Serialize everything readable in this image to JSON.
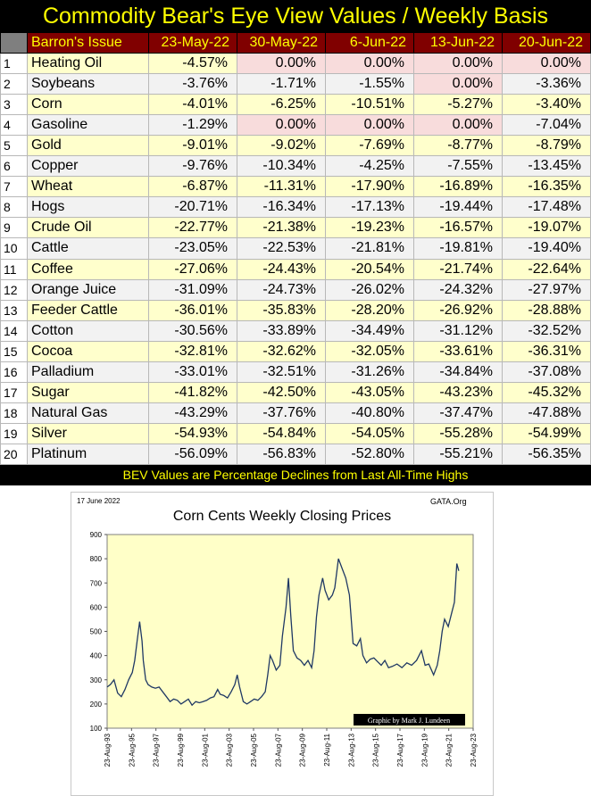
{
  "title": "Commodity Bear's Eye View Values / Weekly Basis",
  "table": {
    "headers": [
      "Barron's Issue",
      "23-May-22",
      "30-May-22",
      "6-Jun-22",
      "13-Jun-22",
      "20-Jun-22"
    ],
    "rows": [
      {
        "n": "1",
        "name": "Heating Oil",
        "v": [
          "-4.57%",
          "0.00%",
          "0.00%",
          "0.00%",
          "0.00%"
        ]
      },
      {
        "n": "2",
        "name": "Soybeans",
        "v": [
          "-3.76%",
          "-1.71%",
          "-1.55%",
          "0.00%",
          "-3.36%"
        ]
      },
      {
        "n": "3",
        "name": "Corn",
        "v": [
          "-4.01%",
          "-6.25%",
          "-10.51%",
          "-5.27%",
          "-3.40%"
        ]
      },
      {
        "n": "4",
        "name": "Gasoline",
        "v": [
          "-1.29%",
          "0.00%",
          "0.00%",
          "0.00%",
          "-7.04%"
        ]
      },
      {
        "n": "5",
        "name": "Gold",
        "v": [
          "-9.01%",
          "-9.02%",
          "-7.69%",
          "-8.77%",
          "-8.79%"
        ]
      },
      {
        "n": "6",
        "name": "Copper",
        "v": [
          "-9.76%",
          "-10.34%",
          "-4.25%",
          "-7.55%",
          "-13.45%"
        ]
      },
      {
        "n": "7",
        "name": "Wheat",
        "v": [
          "-6.87%",
          "-11.31%",
          "-17.90%",
          "-16.89%",
          "-16.35%"
        ]
      },
      {
        "n": "8",
        "name": "Hogs",
        "v": [
          "-20.71%",
          "-16.34%",
          "-17.13%",
          "-19.44%",
          "-17.48%"
        ]
      },
      {
        "n": "9",
        "name": "Crude Oil",
        "v": [
          "-22.77%",
          "-21.38%",
          "-19.23%",
          "-16.57%",
          "-19.07%"
        ]
      },
      {
        "n": "10",
        "name": "Cattle",
        "v": [
          "-23.05%",
          "-22.53%",
          "-21.81%",
          "-19.81%",
          "-19.40%"
        ]
      },
      {
        "n": "11",
        "name": "Coffee",
        "v": [
          "-27.06%",
          "-24.43%",
          "-20.54%",
          "-21.74%",
          "-22.64%"
        ]
      },
      {
        "n": "12",
        "name": "Orange Juice",
        "v": [
          "-31.09%",
          "-24.73%",
          "-26.02%",
          "-24.32%",
          "-27.97%"
        ]
      },
      {
        "n": "13",
        "name": "Feeder Cattle",
        "v": [
          "-36.01%",
          "-35.83%",
          "-28.20%",
          "-26.92%",
          "-28.88%"
        ]
      },
      {
        "n": "14",
        "name": "Cotton",
        "v": [
          "-30.56%",
          "-33.89%",
          "-34.49%",
          "-31.12%",
          "-32.52%"
        ]
      },
      {
        "n": "15",
        "name": "Cocoa",
        "v": [
          "-32.81%",
          "-32.62%",
          "-32.05%",
          "-33.61%",
          "-36.31%"
        ]
      },
      {
        "n": "16",
        "name": "Palladium",
        "v": [
          "-33.01%",
          "-32.51%",
          "-31.26%",
          "-34.84%",
          "-37.08%"
        ]
      },
      {
        "n": "17",
        "name": "Sugar",
        "v": [
          "-41.82%",
          "-42.50%",
          "-43.05%",
          "-43.23%",
          "-45.32%"
        ]
      },
      {
        "n": "18",
        "name": "Natural Gas",
        "v": [
          "-43.29%",
          "-37.76%",
          "-40.80%",
          "-37.47%",
          "-47.88%"
        ]
      },
      {
        "n": "19",
        "name": "Silver",
        "v": [
          "-54.93%",
          "-54.84%",
          "-54.05%",
          "-55.28%",
          "-54.99%"
        ]
      },
      {
        "n": "20",
        "name": "Platinum",
        "v": [
          "-56.09%",
          "-56.83%",
          "-52.80%",
          "-55.21%",
          "-56.35%"
        ]
      }
    ]
  },
  "note": "BEV Values are Percentage Declines from Last All-Time Highs",
  "colors": {
    "title": "#FFFF00",
    "header_bg": "#800000",
    "row_odd": "#FFFFCC",
    "row_even": "#F2F2F2",
    "zero_highlight": "#F8DCDC",
    "plot_bg": "#FFFFC8",
    "series": "#1F3864"
  },
  "chart_data": {
    "type": "line",
    "title": "Corn Cents Weekly Closing Prices",
    "date_label": "17 June 2022",
    "source": "GATA.Org",
    "credit": "Graphic by Mark J. Lundeen",
    "ylim": [
      100,
      900
    ],
    "yticks": [
      "100",
      "200",
      "300",
      "400",
      "500",
      "600",
      "700",
      "800",
      "900"
    ],
    "xticks": [
      "23-Aug-93",
      "23-Aug-95",
      "23-Aug-97",
      "23-Aug-99",
      "23-Aug-01",
      "23-Aug-03",
      "23-Aug-05",
      "23-Aug-07",
      "23-Aug-09",
      "23-Aug-11",
      "23-Aug-13",
      "23-Aug-15",
      "23-Aug-17",
      "23-Aug-19",
      "23-Aug-21",
      "23-Aug-23"
    ],
    "xlim": [
      1993.64,
      2023.64
    ],
    "grid": false,
    "series": [
      {
        "x": [
          1993.64,
          1993.9,
          1994.2,
          1994.5,
          1994.8,
          1995.1,
          1995.4,
          1995.7,
          1995.9,
          1996.1,
          1996.3,
          1996.5,
          1996.6,
          1996.8,
          1997.0,
          1997.3,
          1997.6,
          1997.9,
          1998.2,
          1998.5,
          1998.8,
          1999.1,
          1999.4,
          1999.7,
          2000.0,
          2000.3,
          2000.6,
          2000.9,
          2001.2,
          2001.5,
          2001.8,
          2002.1,
          2002.4,
          2002.7,
          2002.9,
          2003.2,
          2003.5,
          2003.8,
          2004.1,
          2004.3,
          2004.5,
          2004.8,
          2005.1,
          2005.4,
          2005.7,
          2006.0,
          2006.3,
          2006.6,
          2006.8,
          2007.0,
          2007.2,
          2007.5,
          2007.8,
          2008.0,
          2008.3,
          2008.5,
          2008.7,
          2008.9,
          2009.2,
          2009.5,
          2009.8,
          2010.1,
          2010.4,
          2010.6,
          2010.8,
          2011.0,
          2011.3,
          2011.5,
          2011.8,
          2012.1,
          2012.3,
          2012.6,
          2012.9,
          2013.2,
          2013.5,
          2013.8,
          2014.1,
          2014.4,
          2014.6,
          2014.9,
          2015.2,
          2015.5,
          2015.8,
          2016.1,
          2016.4,
          2016.7,
          2017.0,
          2017.4,
          2017.8,
          2018.2,
          2018.6,
          2019.0,
          2019.4,
          2019.7,
          2020.0,
          2020.4,
          2020.7,
          2020.9,
          2021.1,
          2021.3,
          2021.6,
          2021.9,
          2022.1,
          2022.3,
          2022.46
        ],
        "y": [
          270,
          280,
          300,
          245,
          230,
          260,
          300,
          330,
          380,
          460,
          540,
          460,
          380,
          300,
          280,
          270,
          265,
          270,
          250,
          230,
          210,
          220,
          215,
          200,
          210,
          220,
          195,
          210,
          205,
          210,
          215,
          225,
          230,
          260,
          240,
          235,
          225,
          250,
          280,
          320,
          270,
          210,
          200,
          210,
          220,
          215,
          230,
          250,
          320,
          400,
          380,
          340,
          360,
          480,
          600,
          720,
          560,
          420,
          390,
          380,
          360,
          380,
          350,
          420,
          560,
          650,
          720,
          670,
          630,
          650,
          680,
          800,
          760,
          720,
          650,
          450,
          440,
          470,
          400,
          370,
          385,
          390,
          375,
          360,
          380,
          350,
          355,
          365,
          350,
          370,
          360,
          380,
          420,
          360,
          365,
          320,
          360,
          420,
          500,
          550,
          520,
          580,
          620,
          780,
          750
        ]
      }
    ]
  }
}
